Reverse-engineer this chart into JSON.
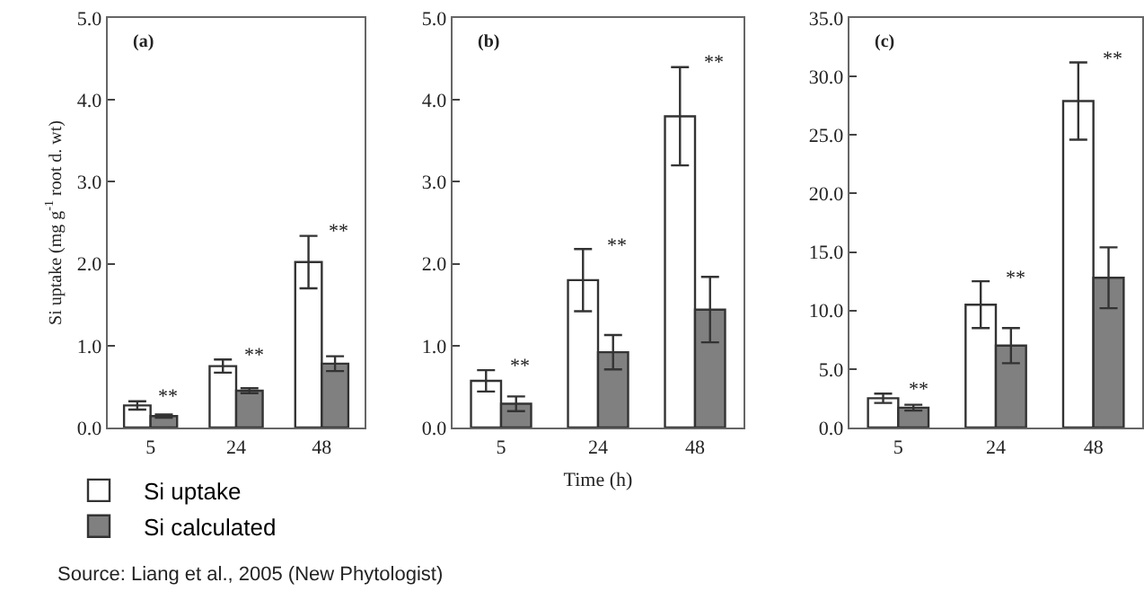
{
  "chart_data": [
    {
      "type": "bar",
      "ylabel": "Si uptake (mg g$^{-1}$ root d. wt)",
      "categories": [
        "5",
        "24",
        "48"
      ],
      "series": [
        {
          "name": "Si uptake",
          "color": "#ffffff",
          "values": [
            0.27,
            0.75,
            2.02
          ],
          "errors": [
            0.05,
            0.08,
            0.32
          ]
        },
        {
          "name": "Si calculated",
          "color": "#808080",
          "values": [
            0.14,
            0.45,
            0.78
          ],
          "errors": [
            0.02,
            0.03,
            0.09
          ]
        }
      ],
      "ylim": [
        0,
        5
      ],
      "yticks": [
        {
          "value": 0,
          "label": "0.0"
        },
        {
          "value": 1,
          "label": "1.0"
        },
        {
          "value": 2,
          "label": "2.0"
        },
        {
          "value": 3,
          "label": "3.0"
        },
        {
          "value": 4,
          "label": "4.0"
        },
        {
          "value": 5,
          "label": "5.0"
        }
      ],
      "annotations": [
        "(a)",
        "**",
        "**",
        "**",
        "Source: Liang et al., 2005 (New Phytologist)"
      ],
      "legend": "bottom left",
      "grid": false
    },
    {
      "type": "bar",
      "xlabel": "Time (h)",
      "categories": [
        "5",
        "24",
        "48"
      ],
      "series": [
        {
          "color": "#ffffff",
          "values": [
            0.57,
            1.8,
            3.8
          ],
          "errors": [
            0.13,
            0.38,
            0.6
          ]
        },
        {
          "color": "#808080",
          "values": [
            0.29,
            0.92,
            1.44
          ],
          "errors": [
            0.09,
            0.21,
            0.4
          ]
        }
      ],
      "ylim": [
        0,
        5
      ],
      "yticks": [
        {
          "value": 0,
          "label": "0.0"
        },
        {
          "value": 1,
          "label": "1.0"
        },
        {
          "value": 2,
          "label": "2.0"
        },
        {
          "value": 3,
          "label": "3.0"
        },
        {
          "value": 4,
          "label": "4.0"
        },
        {
          "value": 5,
          "label": "5.0"
        }
      ],
      "annotations": [
        "(b)",
        "**",
        "**",
        "**"
      ],
      "grid": false
    },
    {
      "type": "bar",
      "categories": [
        "5",
        "24",
        "48"
      ],
      "series": [
        {
          "color": "#ffffff",
          "values": [
            2.5,
            10.5,
            27.9
          ],
          "errors": [
            0.4,
            2.0,
            3.3
          ]
        },
        {
          "color": "#808080",
          "values": [
            1.7,
            7.0,
            12.8
          ],
          "errors": [
            0.25,
            1.5,
            2.6
          ]
        }
      ],
      "ylim": [
        0,
        35
      ],
      "yticks": [
        {
          "value": 0,
          "label": "0.0"
        },
        {
          "value": 5,
          "label": "5.0"
        },
        {
          "value": 10,
          "label": "10.0"
        },
        {
          "value": 15,
          "label": "15.0"
        },
        {
          "value": 20,
          "label": "20.0"
        },
        {
          "value": 25,
          "label": "25.0"
        },
        {
          "value": 30,
          "label": "30.0"
        },
        {
          "value": 35,
          "label": "35.0"
        }
      ],
      "annotations": [
        "(c)",
        "**",
        "**",
        "**"
      ],
      "grid": false
    }
  ]
}
